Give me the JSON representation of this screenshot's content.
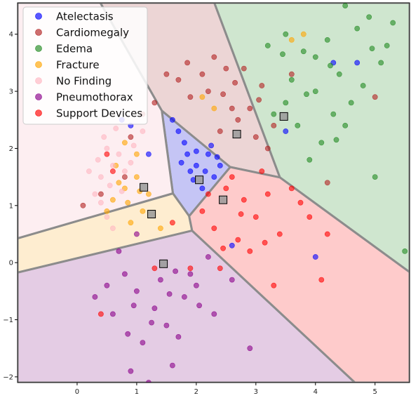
{
  "chart_data": {
    "type": "scatter",
    "title": "",
    "xlabel": "",
    "ylabel": "",
    "xlim": [
      -1.0,
      5.58
    ],
    "ylim": [
      -2.1,
      4.55
    ],
    "x_ticks": [
      0,
      1,
      2,
      3,
      4,
      5
    ],
    "y_ticks": [
      -2,
      -1,
      0,
      1,
      2,
      3,
      4
    ],
    "x_tick_labels": [
      "0",
      "1",
      "2",
      "3",
      "4",
      "5"
    ],
    "y_tick_labels": [
      "−2",
      "−1",
      "0",
      "1",
      "2",
      "3",
      "4"
    ],
    "grid": false,
    "legend_position": "upper-left",
    "series": [
      {
        "name": "Atelectasis",
        "color": "#0000ff",
        "centroid": [
          2.05,
          1.45
        ],
        "points": [
          [
            2.0,
            1.7
          ],
          [
            2.2,
            1.9
          ],
          [
            1.8,
            2.1
          ],
          [
            1.9,
            1.6
          ],
          [
            2.3,
            1.5
          ],
          [
            1.7,
            2.3
          ],
          [
            2.1,
            1.3
          ],
          [
            2.4,
            1.7
          ],
          [
            1.85,
            1.9
          ],
          [
            2.25,
            2.05
          ],
          [
            0.75,
            2.5
          ],
          [
            0.9,
            2.4
          ],
          [
            1.2,
            1.9
          ],
          [
            1.6,
            2.5
          ],
          [
            4.3,
            3.5
          ],
          [
            4.7,
            3.5
          ],
          [
            2.6,
            0.3
          ],
          [
            4.0,
            0.1
          ],
          [
            3.5,
            2.3
          ],
          [
            2.0,
            1.95
          ],
          [
            1.75,
            1.75
          ],
          [
            2.15,
            1.6
          ],
          [
            1.95,
            1.45
          ],
          [
            2.35,
            1.85
          ]
        ]
      },
      {
        "name": "Cardiomegaly",
        "color": "#b22222",
        "centroid": [
          2.68,
          2.25
        ],
        "points": [
          [
            2.5,
            3.4
          ],
          [
            2.2,
            3.0
          ],
          [
            1.9,
            2.9
          ],
          [
            2.6,
            2.7
          ],
          [
            2.3,
            3.6
          ],
          [
            3.1,
            3.1
          ],
          [
            2.7,
            2.5
          ],
          [
            1.7,
            3.2
          ],
          [
            1.5,
            3.3
          ],
          [
            2.4,
            2.3
          ],
          [
            2.9,
            2.7
          ],
          [
            3.3,
            2.4
          ],
          [
            1.3,
            2.8
          ],
          [
            1.1,
            2.6
          ],
          [
            0.9,
            2.2
          ],
          [
            2.1,
            3.3
          ],
          [
            2.8,
            3.4
          ],
          [
            3.0,
            2.2
          ],
          [
            0.1,
            1.0
          ],
          [
            0.4,
            1.2
          ],
          [
            0.8,
            1.5
          ],
          [
            3.6,
            3.3
          ],
          [
            4.2,
            1.4
          ],
          [
            5.0,
            2.9
          ],
          [
            3.2,
            2.0
          ],
          [
            2.65,
            3.15
          ],
          [
            1.85,
            3.5
          ],
          [
            2.45,
            2.95
          ],
          [
            3.05,
            2.85
          ]
        ]
      },
      {
        "name": "Edema",
        "color": "#228b22",
        "centroid": [
          3.47,
          2.56
        ],
        "points": [
          [
            3.5,
            4.0
          ],
          [
            3.8,
            3.7
          ],
          [
            4.2,
            3.9
          ],
          [
            4.5,
            4.5
          ],
          [
            4.9,
            4.3
          ],
          [
            5.2,
            3.8
          ],
          [
            3.6,
            3.2
          ],
          [
            4.0,
            3.0
          ],
          [
            4.4,
            3.3
          ],
          [
            4.8,
            3.1
          ],
          [
            5.1,
            3.5
          ],
          [
            3.3,
            2.6
          ],
          [
            3.7,
            2.4
          ],
          [
            4.1,
            2.1
          ],
          [
            4.5,
            2.4
          ],
          [
            3.9,
            1.8
          ],
          [
            4.3,
            2.6
          ],
          [
            5.3,
            4.2
          ],
          [
            3.2,
            3.8
          ],
          [
            4.6,
            2.8
          ],
          [
            5.5,
            0.2
          ],
          [
            5.0,
            1.5
          ],
          [
            3.5,
            2.8
          ],
          [
            4.0,
            3.6
          ],
          [
            4.7,
            4.1
          ],
          [
            3.85,
            2.95
          ],
          [
            4.25,
            3.45
          ],
          [
            3.45,
            3.65
          ],
          [
            4.35,
            2.15
          ],
          [
            4.95,
            3.75
          ]
        ]
      },
      {
        "name": "Fracture",
        "color": "#ffa500",
        "centroid": [
          1.25,
          0.85
        ],
        "points": [
          [
            0.8,
            1.3
          ],
          [
            1.0,
            1.5
          ],
          [
            0.6,
            1.1
          ],
          [
            1.1,
            0.9
          ],
          [
            0.9,
            0.7
          ],
          [
            0.7,
            1.4
          ],
          [
            1.2,
            1.2
          ],
          [
            0.5,
            0.9
          ],
          [
            1.0,
            1.9
          ],
          [
            0.8,
            2.1
          ],
          [
            1.4,
            0.6
          ],
          [
            0.65,
            1.7
          ],
          [
            2.1,
            2.9
          ],
          [
            3.6,
            3.9
          ],
          [
            3.8,
            4.0
          ],
          [
            2.3,
            2.7
          ],
          [
            0.85,
            1.05
          ],
          [
            1.05,
            1.25
          ]
        ]
      },
      {
        "name": "No Finding",
        "color": "#ffb6c1",
        "centroid": [
          1.12,
          1.32
        ],
        "points": [
          [
            0.5,
            2.0
          ],
          [
            0.6,
            1.7
          ],
          [
            0.4,
            1.5
          ],
          [
            0.7,
            1.9
          ],
          [
            0.8,
            1.6
          ],
          [
            0.3,
            1.2
          ],
          [
            0.55,
            1.35
          ],
          [
            0.9,
            1.75
          ],
          [
            0.45,
            2.2
          ],
          [
            0.65,
            2.35
          ],
          [
            0.75,
            1.25
          ],
          [
            0.35,
            1.8
          ],
          [
            0.5,
            0.8
          ],
          [
            0.6,
            0.6
          ],
          [
            1.1,
            2.3
          ],
          [
            0.2,
            1.6
          ],
          [
            0.95,
            2.05
          ],
          [
            0.4,
            1.05
          ]
        ]
      },
      {
        "name": "Pneumothorax",
        "color": "#8b008b",
        "centroid": [
          1.45,
          -0.02
        ],
        "points": [
          [
            1.0,
            -0.5
          ],
          [
            1.3,
            -0.8
          ],
          [
            0.8,
            -0.2
          ],
          [
            1.5,
            -1.1
          ],
          [
            1.8,
            -0.6
          ],
          [
            0.6,
            -0.9
          ],
          [
            1.1,
            -1.4
          ],
          [
            1.6,
            -1.8
          ],
          [
            0.9,
            -1.9
          ],
          [
            1.2,
            -2.1
          ],
          [
            2.0,
            -0.4
          ],
          [
            2.3,
            -0.9
          ],
          [
            0.5,
            -0.4
          ],
          [
            1.4,
            -0.3
          ],
          [
            1.9,
            -0.2
          ],
          [
            2.6,
            -0.3
          ],
          [
            2.9,
            -1.5
          ],
          [
            0.3,
            -0.6
          ],
          [
            1.7,
            -1.3
          ],
          [
            0.7,
            0.2
          ],
          [
            1.0,
            0.5
          ],
          [
            2.2,
            0.1
          ],
          [
            1.55,
            -0.55
          ],
          [
            1.25,
            -1.05
          ],
          [
            0.95,
            -0.75
          ],
          [
            2.05,
            -0.75
          ],
          [
            1.65,
            -0.15
          ],
          [
            0.85,
            -1.25
          ]
        ]
      },
      {
        "name": "Support Devices",
        "color": "#ff0000",
        "centroid": [
          2.45,
          1.1
        ],
        "points": [
          [
            2.5,
            1.3
          ],
          [
            2.8,
            1.1
          ],
          [
            3.0,
            0.8
          ],
          [
            2.3,
            0.6
          ],
          [
            2.7,
            0.4
          ],
          [
            3.2,
            1.2
          ],
          [
            2.6,
            1.5
          ],
          [
            2.9,
            0.2
          ],
          [
            3.4,
            0.5
          ],
          [
            2.1,
            0.9
          ],
          [
            3.6,
            1.3
          ],
          [
            3.9,
            0.8
          ],
          [
            4.2,
            0.5
          ],
          [
            4.1,
            -0.3
          ],
          [
            3.3,
            -0.4
          ],
          [
            2.4,
            -0.1
          ],
          [
            1.9,
            -0.1
          ],
          [
            1.3,
            -0.1
          ],
          [
            1.6,
            0.7
          ],
          [
            0.4,
            -0.9
          ],
          [
            0.5,
            1.9
          ],
          [
            0.6,
            1.6
          ],
          [
            3.1,
            1.6
          ],
          [
            2.2,
            1.2
          ],
          [
            2.75,
            0.85
          ],
          [
            3.15,
            0.35
          ],
          [
            2.45,
            0.25
          ],
          [
            3.75,
            1.05
          ]
        ]
      }
    ]
  },
  "region_colors": {
    "Atelectasis": "#c5c5f5",
    "Cardiomegaly": "#ecd5d5",
    "Edema": "#cfe6cf",
    "Fracture": "#feedd0",
    "No Finding": "#fdeef1",
    "Pneumothorax": "#e4cce4",
    "Support Devices": "#fecbcb"
  },
  "boundary_color": "#8c8c8c",
  "centroid_color": "#999999"
}
